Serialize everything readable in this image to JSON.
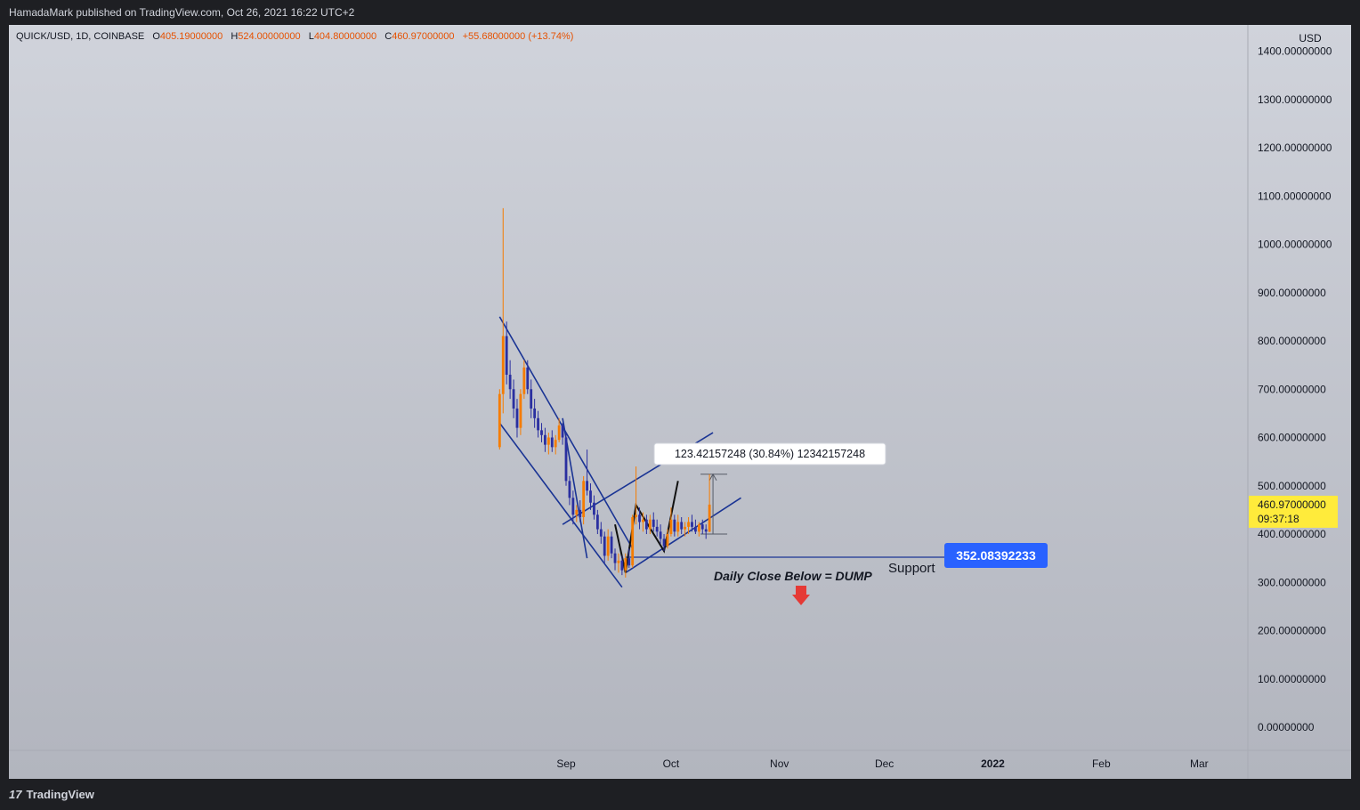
{
  "header": {
    "publisher": "HamadaMark published on TradingView.com, Oct 26, 2021 16:22 UTC+2"
  },
  "legend": {
    "symbol": "QUICK/USD, 1D, COINBASE",
    "open_label": "O",
    "open": "405.19000000",
    "high_label": "H",
    "high": "524.00000000",
    "low_label": "L",
    "low": "404.80000000",
    "close_label": "C",
    "close": "460.97000000",
    "change": "+55.68000000 (+13.74%)"
  },
  "footer": {
    "brand": "TradingView"
  },
  "chart_data": {
    "type": "candlestick",
    "currency": "USD",
    "y_ticks": [
      "1400.00000000",
      "1300.00000000",
      "1200.00000000",
      "1100.00000000",
      "1000.00000000",
      "900.00000000",
      "800.00000000",
      "700.00000000",
      "600.00000000",
      "500.00000000",
      "400.00000000",
      "300.00000000",
      "200.00000000",
      "100.00000000",
      "0.00000000"
    ],
    "ylim": [
      0,
      1400
    ],
    "x_labels": [
      {
        "label": "Sep",
        "day": 0
      },
      {
        "label": "Oct",
        "day": 30
      },
      {
        "label": "Nov",
        "day": 61
      },
      {
        "label": "Dec",
        "day": 91
      },
      {
        "label": "2022",
        "day": 122
      },
      {
        "label": "Feb",
        "day": 153
      },
      {
        "label": "Mar",
        "day": 181
      }
    ],
    "last_price": "460.97000000",
    "countdown": "09:37:18",
    "support_price": "352.08392233",
    "support_label": "Support",
    "annotation": "Daily Close Below = DUMP",
    "measure_label": "123.42157248 (30.84%) 12342157248",
    "colors": {
      "up": "#f57c00",
      "down": "#2a2fa0",
      "channel": "#1a3494",
      "support_badge": "#2962ff",
      "last_price_badge": "#ffeb3b",
      "dump_arrow": "#e53935"
    },
    "candles": [
      {
        "d": -19,
        "o": 580,
        "h": 700,
        "l": 575,
        "c": 690
      },
      {
        "d": -18,
        "o": 690,
        "h": 1075,
        "l": 650,
        "c": 810
      },
      {
        "d": -17,
        "o": 810,
        "h": 840,
        "l": 710,
        "c": 730
      },
      {
        "d": -16,
        "o": 730,
        "h": 760,
        "l": 680,
        "c": 700
      },
      {
        "d": -15,
        "o": 700,
        "h": 720,
        "l": 640,
        "c": 660
      },
      {
        "d": -14,
        "o": 660,
        "h": 680,
        "l": 600,
        "c": 620
      },
      {
        "d": -13,
        "o": 620,
        "h": 700,
        "l": 605,
        "c": 690
      },
      {
        "d": -12,
        "o": 690,
        "h": 760,
        "l": 680,
        "c": 745
      },
      {
        "d": -11,
        "o": 745,
        "h": 760,
        "l": 690,
        "c": 700
      },
      {
        "d": -10,
        "o": 700,
        "h": 720,
        "l": 640,
        "c": 660
      },
      {
        "d": -9,
        "o": 660,
        "h": 680,
        "l": 620,
        "c": 640
      },
      {
        "d": -8,
        "o": 640,
        "h": 655,
        "l": 600,
        "c": 615
      },
      {
        "d": -7,
        "o": 615,
        "h": 630,
        "l": 590,
        "c": 605
      },
      {
        "d": -6,
        "o": 605,
        "h": 620,
        "l": 570,
        "c": 585
      },
      {
        "d": -5,
        "o": 585,
        "h": 610,
        "l": 565,
        "c": 600
      },
      {
        "d": -4,
        "o": 600,
        "h": 615,
        "l": 570,
        "c": 580
      },
      {
        "d": -3,
        "o": 580,
        "h": 605,
        "l": 565,
        "c": 595
      },
      {
        "d": -2,
        "o": 595,
        "h": 640,
        "l": 590,
        "c": 625
      },
      {
        "d": -1,
        "o": 625,
        "h": 630,
        "l": 585,
        "c": 600
      },
      {
        "d": 0,
        "o": 600,
        "h": 610,
        "l": 500,
        "c": 510
      },
      {
        "d": 1,
        "o": 510,
        "h": 520,
        "l": 460,
        "c": 475
      },
      {
        "d": 2,
        "o": 475,
        "h": 490,
        "l": 420,
        "c": 440
      },
      {
        "d": 3,
        "o": 440,
        "h": 460,
        "l": 425,
        "c": 450
      },
      {
        "d": 4,
        "o": 450,
        "h": 470,
        "l": 425,
        "c": 435
      },
      {
        "d": 5,
        "o": 435,
        "h": 520,
        "l": 420,
        "c": 510
      },
      {
        "d": 6,
        "o": 510,
        "h": 575,
        "l": 480,
        "c": 490
      },
      {
        "d": 7,
        "o": 490,
        "h": 505,
        "l": 450,
        "c": 465
      },
      {
        "d": 8,
        "o": 465,
        "h": 480,
        "l": 430,
        "c": 440
      },
      {
        "d": 9,
        "o": 440,
        "h": 450,
        "l": 400,
        "c": 410
      },
      {
        "d": 10,
        "o": 410,
        "h": 425,
        "l": 380,
        "c": 395
      },
      {
        "d": 11,
        "o": 395,
        "h": 405,
        "l": 340,
        "c": 355
      },
      {
        "d": 12,
        "o": 355,
        "h": 410,
        "l": 345,
        "c": 395
      },
      {
        "d": 13,
        "o": 395,
        "h": 405,
        "l": 350,
        "c": 360
      },
      {
        "d": 14,
        "o": 360,
        "h": 370,
        "l": 325,
        "c": 340
      },
      {
        "d": 15,
        "o": 340,
        "h": 360,
        "l": 320,
        "c": 345
      },
      {
        "d": 16,
        "o": 345,
        "h": 355,
        "l": 315,
        "c": 325
      },
      {
        "d": 17,
        "o": 325,
        "h": 360,
        "l": 310,
        "c": 350
      },
      {
        "d": 18,
        "o": 350,
        "h": 370,
        "l": 330,
        "c": 335
      },
      {
        "d": 19,
        "o": 335,
        "h": 440,
        "l": 330,
        "c": 435
      },
      {
        "d": 20,
        "o": 435,
        "h": 540,
        "l": 420,
        "c": 440
      },
      {
        "d": 21,
        "o": 440,
        "h": 455,
        "l": 410,
        "c": 425
      },
      {
        "d": 22,
        "o": 425,
        "h": 445,
        "l": 405,
        "c": 430
      },
      {
        "d": 23,
        "o": 430,
        "h": 440,
        "l": 400,
        "c": 410
      },
      {
        "d": 24,
        "o": 410,
        "h": 440,
        "l": 400,
        "c": 430
      },
      {
        "d": 25,
        "o": 430,
        "h": 445,
        "l": 405,
        "c": 415
      },
      {
        "d": 26,
        "o": 415,
        "h": 430,
        "l": 395,
        "c": 405
      },
      {
        "d": 27,
        "o": 405,
        "h": 420,
        "l": 380,
        "c": 390
      },
      {
        "d": 28,
        "o": 390,
        "h": 400,
        "l": 365,
        "c": 375
      },
      {
        "d": 29,
        "o": 375,
        "h": 410,
        "l": 370,
        "c": 400
      },
      {
        "d": 30,
        "o": 400,
        "h": 455,
        "l": 395,
        "c": 430
      },
      {
        "d": 31,
        "o": 430,
        "h": 440,
        "l": 395,
        "c": 405
      },
      {
        "d": 32,
        "o": 405,
        "h": 440,
        "l": 395,
        "c": 425
      },
      {
        "d": 33,
        "o": 425,
        "h": 435,
        "l": 400,
        "c": 410
      },
      {
        "d": 34,
        "o": 410,
        "h": 425,
        "l": 395,
        "c": 415
      },
      {
        "d": 35,
        "o": 415,
        "h": 435,
        "l": 400,
        "c": 425
      },
      {
        "d": 36,
        "o": 425,
        "h": 440,
        "l": 405,
        "c": 415
      },
      {
        "d": 37,
        "o": 415,
        "h": 430,
        "l": 400,
        "c": 405
      },
      {
        "d": 38,
        "o": 405,
        "h": 425,
        "l": 395,
        "c": 420
      },
      {
        "d": 39,
        "o": 420,
        "h": 430,
        "l": 400,
        "c": 410
      },
      {
        "d": 40,
        "o": 410,
        "h": 420,
        "l": 390,
        "c": 405
      },
      {
        "d": 41,
        "o": 405,
        "h": 524,
        "l": 404,
        "c": 461
      }
    ],
    "drawings": {
      "falling_channel_upper": [
        [
          -19,
          850
        ],
        [
          19,
          370
        ]
      ],
      "falling_channel_lower": [
        [
          -19,
          630
        ],
        [
          16,
          290
        ]
      ],
      "wedge_upper": [
        [
          -1,
          640
        ],
        [
          6,
          350
        ]
      ],
      "rising_channel_upper": [
        [
          -1,
          420
        ],
        [
          42,
          610
        ]
      ],
      "rising_channel_lower": [
        [
          17,
          320
        ],
        [
          50,
          475
        ]
      ],
      "zigzag": [
        [
          14,
          420
        ],
        [
          17,
          320
        ],
        [
          20,
          460
        ],
        [
          28,
          365
        ],
        [
          32,
          510
        ]
      ],
      "measure_top": 524,
      "measure_bottom": 400,
      "measure_day": 42
    }
  }
}
